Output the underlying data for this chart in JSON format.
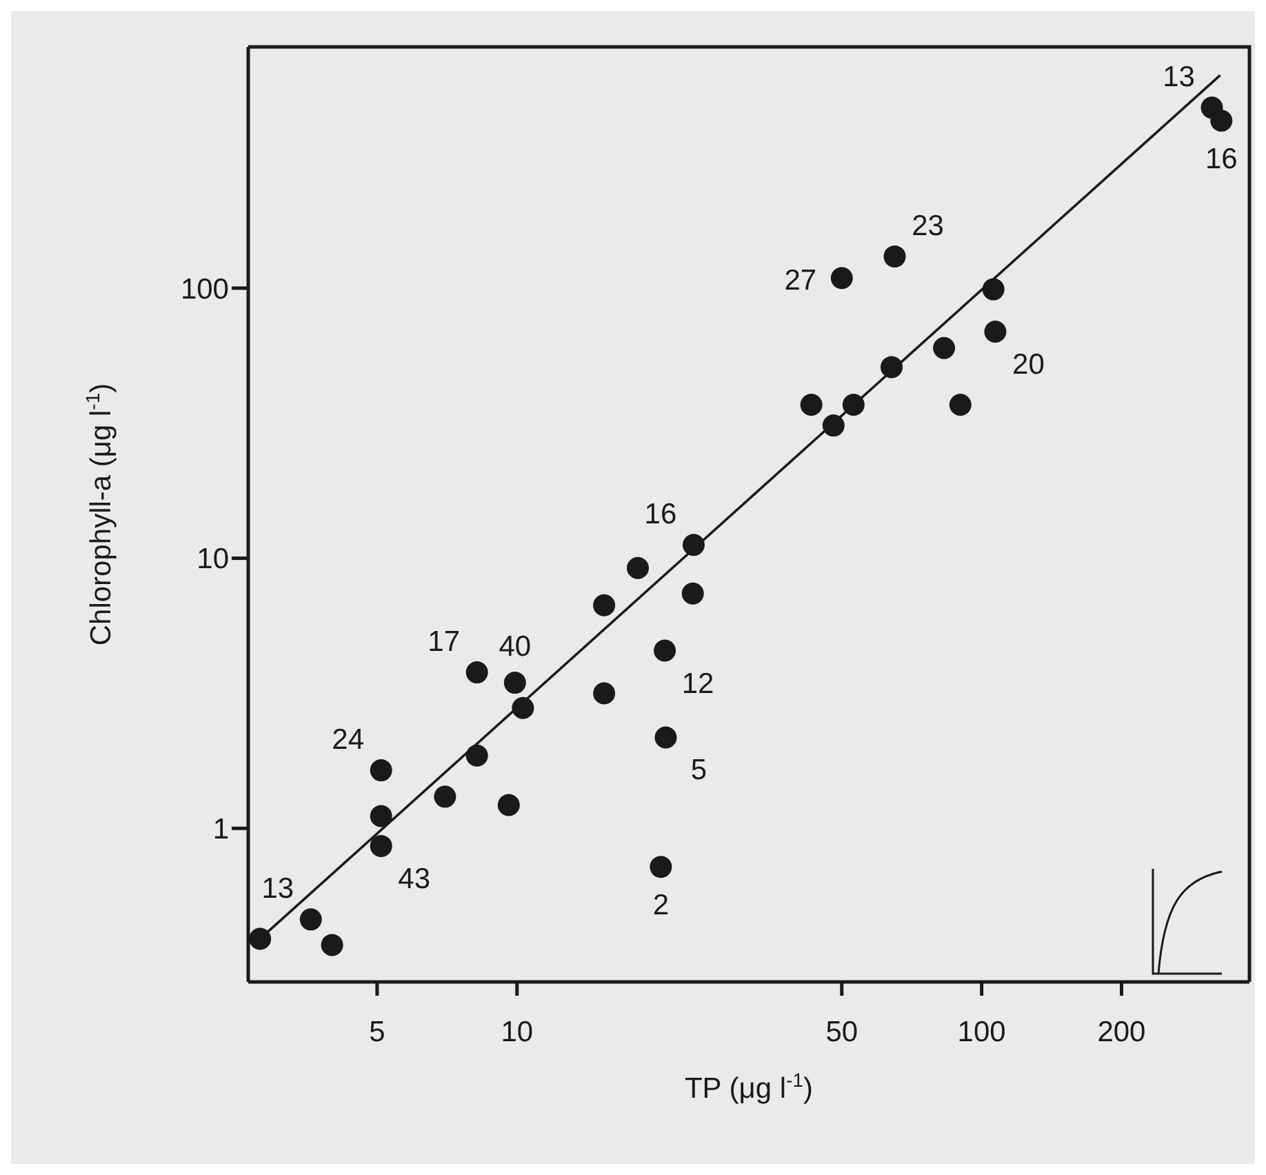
{
  "chart_data": {
    "type": "scatter",
    "xlabel": "TP (μg l$^{-1}$)",
    "ylabel": "Chlorophyll-a (μg l$^{-1}$)",
    "log": "xy",
    "xlim": [
      2.64,
      377
    ],
    "ylim": [
      0.27,
      782
    ],
    "xticks": [
      5,
      10,
      50,
      100,
      200
    ],
    "yticks": [
      1,
      10,
      100
    ],
    "grid": false,
    "marker": "circle",
    "series": [
      {
        "type": "scatter",
        "color": "#1a1a1a",
        "x": [
          313,
          328,
          65,
          50,
          106,
          107,
          83,
          64,
          43,
          53,
          48,
          90,
          24,
          18.2,
          15.4,
          23.9,
          20.8,
          8.2,
          9.9,
          10.3,
          15.4,
          20.9,
          8.2,
          5.1,
          7.0,
          9.6,
          5.1,
          5.1,
          20.4,
          3.6,
          4.0,
          2.8
        ],
        "values": [
          466,
          417,
          131,
          109,
          99,
          69,
          60,
          51,
          37,
          37,
          31,
          37,
          11.2,
          9.2,
          6.7,
          7.4,
          4.55,
          3.78,
          3.46,
          2.79,
          3.16,
          2.17,
          1.86,
          1.64,
          1.31,
          1.22,
          1.11,
          0.86,
          0.72,
          0.46,
          0.37,
          0.39
        ]
      },
      {
        "type": "line",
        "color": "#1a1a1a",
        "marker": "none",
        "line_style": "solid",
        "x": [
          2.8,
          326
        ],
        "values": [
          0.39,
          614
        ]
      }
    ],
    "annotations": [
      {
        "text": "13",
        "x": 313,
        "y": 466
      },
      {
        "text": "16",
        "x": 328,
        "y": 417
      },
      {
        "text": "23",
        "x": 65,
        "y": 131
      },
      {
        "text": "27",
        "x": 50,
        "y": 109
      },
      {
        "text": "20",
        "x": 107,
        "y": 69
      },
      {
        "text": "16",
        "x": 24,
        "y": 11.2
      },
      {
        "text": "12",
        "x": 20.8,
        "y": 4.55
      },
      {
        "text": "17",
        "x": 8.2,
        "y": 3.78
      },
      {
        "text": "40",
        "x": 9.9,
        "y": 3.46
      },
      {
        "text": "5",
        "x": 20.9,
        "y": 2.17
      },
      {
        "text": "24",
        "x": 5.1,
        "y": 1.64
      },
      {
        "text": "43",
        "x": 5.1,
        "y": 0.86
      },
      {
        "text": "2",
        "x": 20.4,
        "y": 0.72
      },
      {
        "text": "13",
        "x": 3.6,
        "y": 0.46
      }
    ]
  }
}
